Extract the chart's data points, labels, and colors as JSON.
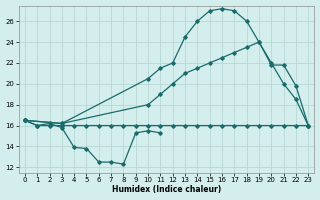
{
  "xlabel": "Humidex (Indice chaleur)",
  "bg_color": "#d4eeed",
  "grid_color": "#b8d8d5",
  "line_color": "#1a6b6b",
  "xlim": [
    -0.5,
    23.5
  ],
  "ylim": [
    11.5,
    27.5
  ],
  "yticks": [
    12,
    14,
    16,
    18,
    20,
    22,
    24,
    26
  ],
  "s1_x": [
    0,
    1,
    2,
    3,
    4,
    5,
    6,
    7,
    8,
    9,
    10,
    11
  ],
  "s1_y": [
    16.5,
    16.0,
    16.2,
    15.8,
    13.9,
    13.8,
    12.5,
    12.5,
    12.3,
    15.3,
    15.5,
    15.3
  ],
  "s2_x": [
    0,
    1,
    2,
    3,
    4,
    5,
    6,
    7,
    8,
    9,
    10,
    11,
    12,
    13,
    14,
    15,
    16,
    17,
    18,
    19,
    20,
    21,
    22,
    23
  ],
  "s2_y": [
    16.5,
    16.0,
    16.0,
    16.0,
    16.0,
    16.0,
    16.0,
    16.0,
    16.0,
    16.0,
    16.0,
    16.0,
    16.0,
    16.0,
    16.0,
    16.0,
    16.0,
    16.0,
    16.0,
    16.0,
    16.0,
    16.0,
    16.0,
    16.0
  ],
  "s3_x": [
    0,
    3,
    10,
    11,
    12,
    13,
    14,
    15,
    16,
    17,
    18,
    19,
    20,
    21,
    22,
    23
  ],
  "s3_y": [
    16.5,
    16.2,
    18.0,
    19.0,
    20.0,
    21.0,
    21.5,
    22.0,
    22.5,
    23.0,
    23.5,
    24.0,
    21.8,
    21.8,
    19.8,
    16.0
  ],
  "s4_x": [
    0,
    3,
    10,
    11,
    12,
    13,
    14,
    15,
    16,
    17,
    18,
    19,
    20,
    21,
    22,
    23
  ],
  "s4_y": [
    16.5,
    16.2,
    20.5,
    21.5,
    22.0,
    24.5,
    26.0,
    27.0,
    27.2,
    27.0,
    26.0,
    24.0,
    22.0,
    20.0,
    18.5,
    16.0
  ]
}
